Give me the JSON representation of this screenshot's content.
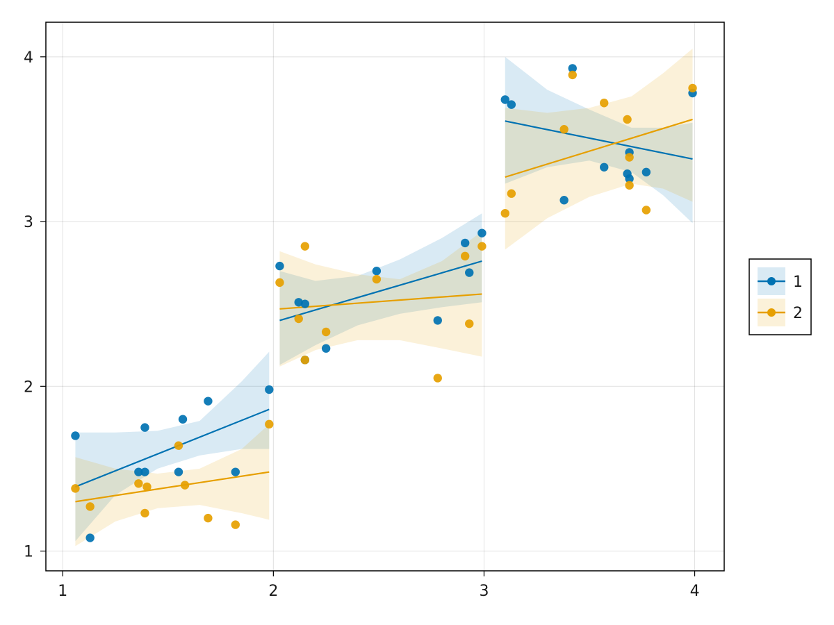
{
  "chart_data": {
    "type": "scatter",
    "title": "",
    "xlabel": "",
    "ylabel": "",
    "xlim": [
      0.92,
      4.14
    ],
    "ylim": [
      0.88,
      4.21
    ],
    "xticks": [
      1,
      2,
      3,
      4
    ],
    "yticks": [
      1,
      2,
      3,
      4
    ],
    "grid": true,
    "legend_position": "right",
    "series": [
      {
        "name": "1",
        "color": "#0072b2",
        "points": [
          [
            1.06,
            1.7
          ],
          [
            1.13,
            1.08
          ],
          [
            1.36,
            1.48
          ],
          [
            1.39,
            1.48
          ],
          [
            1.39,
            1.75
          ],
          [
            1.55,
            1.48
          ],
          [
            1.57,
            1.8
          ],
          [
            1.69,
            1.91
          ],
          [
            1.82,
            1.48
          ],
          [
            1.98,
            1.98
          ],
          [
            2.03,
            2.73
          ],
          [
            2.12,
            2.51
          ],
          [
            2.15,
            2.5
          ],
          [
            2.15,
            2.16
          ],
          [
            2.25,
            2.23
          ],
          [
            2.49,
            2.7
          ],
          [
            2.78,
            2.4
          ],
          [
            2.91,
            2.87
          ],
          [
            2.93,
            2.69
          ],
          [
            2.99,
            2.93
          ],
          [
            3.1,
            3.74
          ],
          [
            3.13,
            3.71
          ],
          [
            3.38,
            3.13
          ],
          [
            3.42,
            3.93
          ],
          [
            3.57,
            3.33
          ],
          [
            3.68,
            3.29
          ],
          [
            3.69,
            3.42
          ],
          [
            3.69,
            3.26
          ],
          [
            3.77,
            3.3
          ],
          [
            3.99,
            3.78
          ]
        ],
        "fits": [
          {
            "x0": 1.06,
            "y0": 1.39,
            "x1": 1.98,
            "y1": 1.86
          },
          {
            "x0": 2.03,
            "y0": 2.4,
            "x1": 2.99,
            "y1": 2.76
          },
          {
            "x0": 3.1,
            "y0": 3.61,
            "x1": 3.99,
            "y1": 3.38
          }
        ],
        "bands": [
          {
            "x": [
              1.06,
              1.25,
              1.45,
              1.65,
              1.85,
              1.98
            ],
            "lower": [
              1.06,
              1.34,
              1.5,
              1.58,
              1.62,
              1.62
            ],
            "upper": [
              1.72,
              1.72,
              1.73,
              1.79,
              2.03,
              2.21
            ]
          },
          {
            "x": [
              2.03,
              2.2,
              2.4,
              2.6,
              2.8,
              2.99
            ],
            "lower": [
              2.13,
              2.25,
              2.37,
              2.44,
              2.48,
              2.51
            ],
            "upper": [
              2.7,
              2.64,
              2.67,
              2.77,
              2.9,
              3.05
            ]
          },
          {
            "x": [
              3.1,
              3.3,
              3.5,
              3.7,
              3.85,
              3.99
            ],
            "lower": [
              3.23,
              3.33,
              3.37,
              3.3,
              3.16,
              2.99
            ],
            "upper": [
              4.0,
              3.8,
              3.68,
              3.57,
              3.57,
              3.6
            ]
          }
        ]
      },
      {
        "name": "2",
        "color": "#e69f00",
        "points": [
          [
            1.06,
            1.38
          ],
          [
            1.13,
            1.27
          ],
          [
            1.36,
            1.41
          ],
          [
            1.39,
            1.23
          ],
          [
            1.4,
            1.39
          ],
          [
            1.55,
            1.64
          ],
          [
            1.58,
            1.4
          ],
          [
            1.69,
            1.2
          ],
          [
            1.82,
            1.16
          ],
          [
            1.98,
            1.77
          ],
          [
            2.03,
            2.63
          ],
          [
            2.12,
            2.41
          ],
          [
            2.15,
            2.85
          ],
          [
            2.15,
            2.16
          ],
          [
            2.25,
            2.33
          ],
          [
            2.49,
            2.65
          ],
          [
            2.78,
            2.05
          ],
          [
            2.91,
            2.79
          ],
          [
            2.93,
            2.38
          ],
          [
            2.99,
            2.85
          ],
          [
            3.1,
            3.05
          ],
          [
            3.13,
            3.17
          ],
          [
            3.38,
            3.56
          ],
          [
            3.42,
            3.89
          ],
          [
            3.57,
            3.72
          ],
          [
            3.68,
            3.62
          ],
          [
            3.69,
            3.39
          ],
          [
            3.69,
            3.22
          ],
          [
            3.77,
            3.07
          ],
          [
            3.99,
            3.81
          ]
        ],
        "fits": [
          {
            "x0": 1.06,
            "y0": 1.3,
            "x1": 1.98,
            "y1": 1.48
          },
          {
            "x0": 2.03,
            "y0": 2.47,
            "x1": 2.99,
            "y1": 2.56
          },
          {
            "x0": 3.1,
            "y0": 3.27,
            "x1": 3.99,
            "y1": 3.62
          }
        ],
        "bands": [
          {
            "x": [
              1.06,
              1.25,
              1.45,
              1.65,
              1.85,
              1.98
            ],
            "lower": [
              1.03,
              1.18,
              1.26,
              1.28,
              1.23,
              1.19
            ],
            "upper": [
              1.57,
              1.5,
              1.47,
              1.5,
              1.62,
              1.77
            ]
          },
          {
            "x": [
              2.03,
              2.2,
              2.4,
              2.6,
              2.8,
              2.99
            ],
            "lower": [
              2.12,
              2.22,
              2.28,
              2.28,
              2.23,
              2.18
            ],
            "upper": [
              2.82,
              2.74,
              2.68,
              2.65,
              2.76,
              2.94
            ]
          },
          {
            "x": [
              3.1,
              3.3,
              3.5,
              3.7,
              3.85,
              3.99
            ],
            "lower": [
              2.83,
              3.02,
              3.15,
              3.23,
              3.2,
              3.12
            ],
            "upper": [
              3.69,
              3.66,
              3.69,
              3.76,
              3.9,
              4.05
            ]
          }
        ]
      }
    ]
  }
}
